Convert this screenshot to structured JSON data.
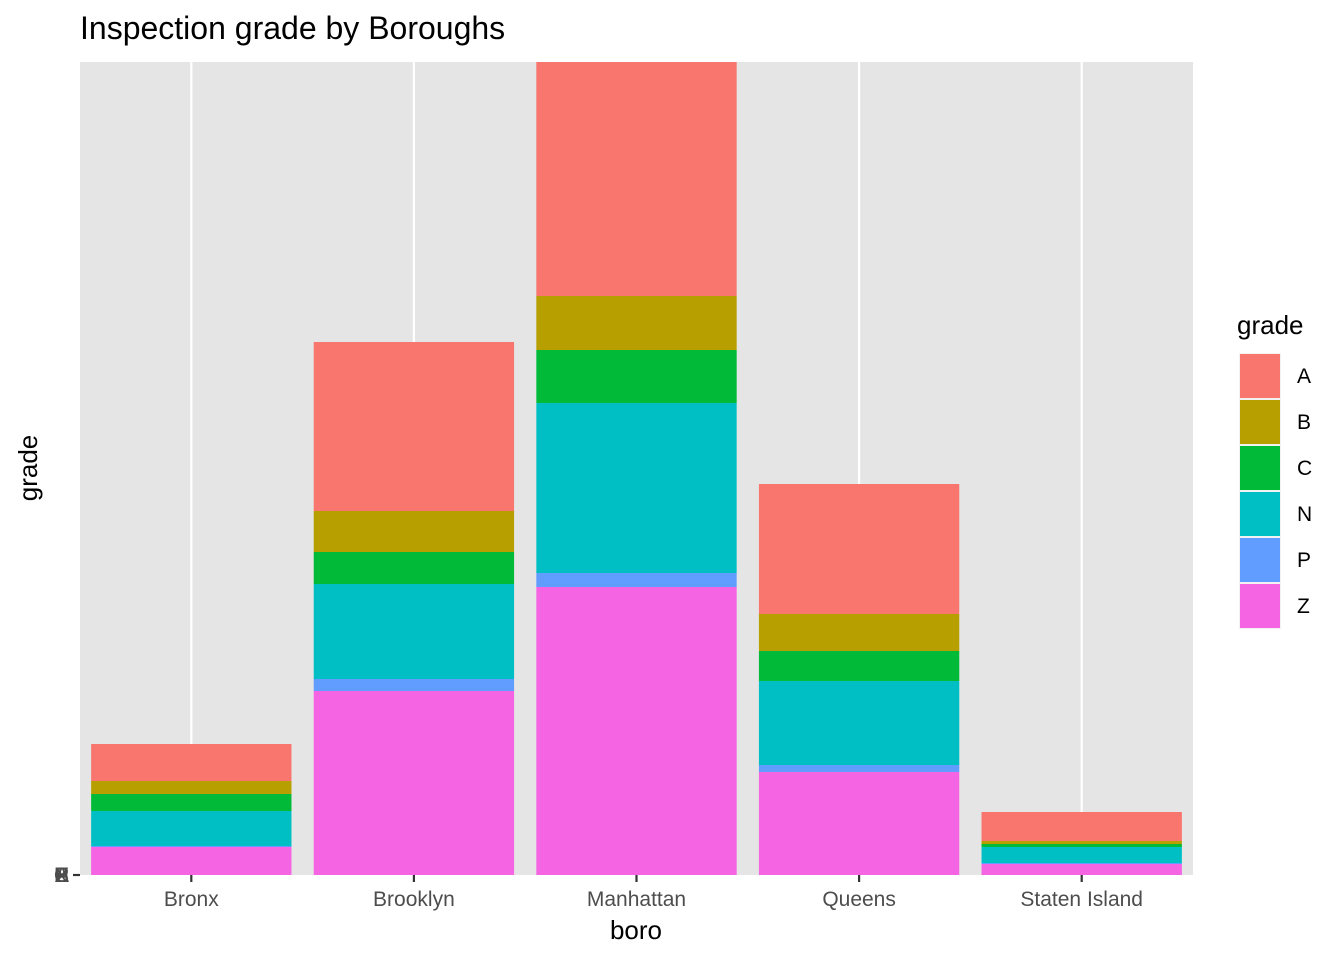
{
  "chart_data": {
    "type": "bar",
    "stacked": true,
    "title": "Inspection grade by Boroughs",
    "xlabel": "boro",
    "ylabel": "grade",
    "categories": [
      "Bronx",
      "Brooklyn",
      "Manhattan",
      "Queens",
      "Staten Island"
    ],
    "series": [
      {
        "name": "A",
        "color": "#F8766D",
        "values": [
          37,
          169,
          234,
          130,
          29
        ]
      },
      {
        "name": "B",
        "color": "#B79F00",
        "values": [
          13,
          41,
          54,
          37,
          3
        ]
      },
      {
        "name": "C",
        "color": "#00BA38",
        "values": [
          17,
          32,
          53,
          30,
          3
        ]
      },
      {
        "name": "N",
        "color": "#00BFC4",
        "values": [
          35,
          95,
          170,
          84,
          16
        ]
      },
      {
        "name": "P",
        "color": "#619CFF",
        "values": [
          1,
          12,
          14,
          7,
          1
        ]
      },
      {
        "name": "Z",
        "color": "#F564E3",
        "values": [
          28,
          184,
          288,
          103,
          11
        ]
      }
    ],
    "grid": true,
    "panel_background": "#E5E5E5",
    "legend": {
      "title": "grade",
      "position": "right"
    }
  }
}
